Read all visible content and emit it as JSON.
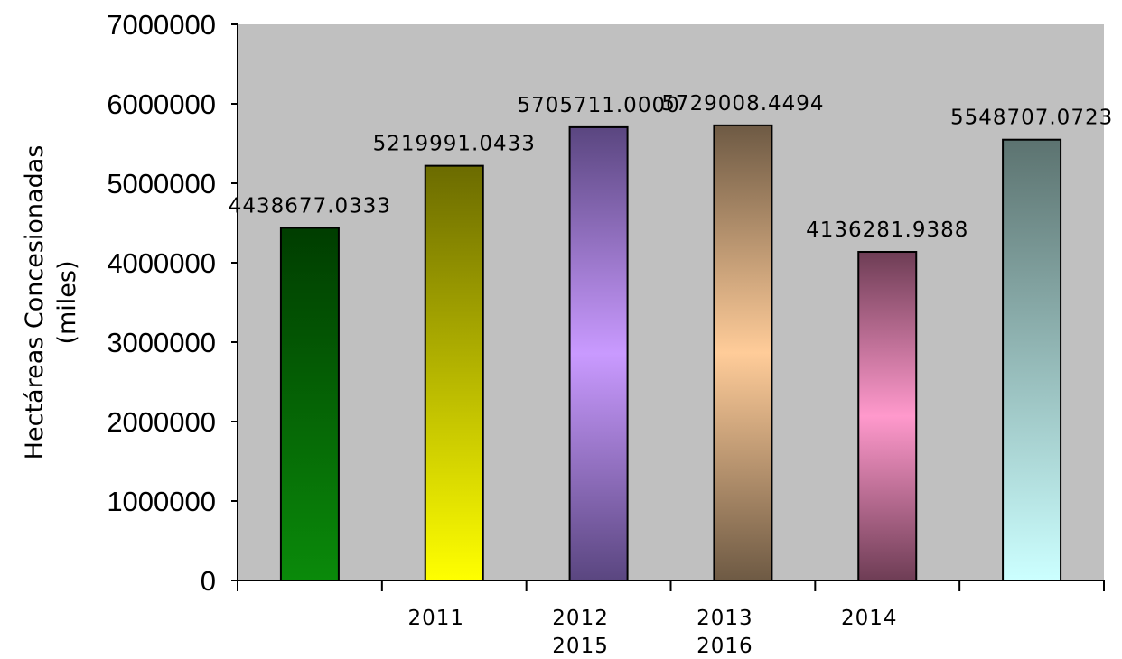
{
  "chart_data": {
    "type": "bar",
    "title": "",
    "xlabel": "",
    "ylabel_lines": [
      "Hectáreas Concesionadas",
      "(miles)"
    ],
    "ylim": [
      0,
      7000000
    ],
    "yticks": [
      0,
      1000000,
      2000000,
      3000000,
      4000000,
      5000000,
      6000000,
      7000000
    ],
    "ytick_labels": [
      "0",
      "1000000",
      "2000000",
      "3000000",
      "4000000",
      "5000000",
      "6000000",
      "7000000"
    ],
    "bars": [
      {
        "year": "2011",
        "value": 4438677.0333,
        "label": "4438677.0333",
        "colors": [
          "#003d00",
          "#0a8a0a"
        ]
      },
      {
        "year": "2012",
        "value": 5219991.0433,
        "label": "5219991.0433",
        "colors": [
          "#6b6b00",
          "#ffff00"
        ]
      },
      {
        "year": "2013",
        "value": 5705711.0,
        "label": "5705711.0000",
        "colors": [
          "#5a4680",
          "#c99aff"
        ]
      },
      {
        "year": "2014",
        "value": 5729008.4494,
        "label": "5729008.4494",
        "colors": [
          "#6e5a44",
          "#ffcc99"
        ]
      },
      {
        "year": "2015",
        "value": 4136281.9388,
        "label": "4136281.9388",
        "colors": [
          "#6e3d55",
          "#ff99cc"
        ]
      },
      {
        "year": "2016",
        "value": 5548707.0723,
        "label": "5548707.0723",
        "colors": [
          "#5c7370",
          "#ccffff"
        ]
      }
    ],
    "x_category_labels": [
      {
        "lines": [
          "2011"
        ]
      },
      {
        "lines": [
          "2012",
          "2015"
        ]
      },
      {
        "lines": [
          "2013",
          "2016"
        ]
      },
      {
        "lines": [
          "2014"
        ]
      }
    ],
    "grid": false,
    "legend": "none",
    "plot_background": "#c0c0c0"
  }
}
